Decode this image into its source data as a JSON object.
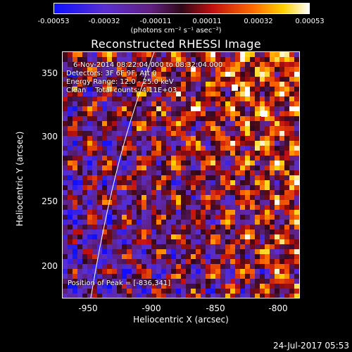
{
  "colorbar": {
    "ticks": [
      "-0.00053",
      "-0.00032",
      "-0.00011",
      "0.00011",
      "0.00032",
      "0.00053"
    ],
    "units": "(photons cm⁻² s⁻¹ asec⁻²)"
  },
  "title": "Reconstructed RHESSI Image",
  "info": {
    "time": "6-Nov-2014 08:22:04.000 to 08:32:04.000",
    "detectors": "Detectors: 3F 6F 9F, Att 0",
    "energy": "Energy Range: 12.0 - 25.0 keV",
    "clean": "Clean    Total counts: 4.11E+03"
  },
  "peak_label": "Position of Peak = [-836,341]",
  "axes": {
    "xlabel": "Heliocentric X (arcsec)",
    "ylabel": "Heliocentric Y (arcsec)",
    "xticks": [
      "-950",
      "-900",
      "-850",
      "-800"
    ],
    "yticks": [
      "350",
      "300",
      "250",
      "200"
    ],
    "xlim": [
      -975,
      -790
    ],
    "ylim": [
      173,
      372
    ]
  },
  "datestamp": "24-Jul-2017 05:53"
}
